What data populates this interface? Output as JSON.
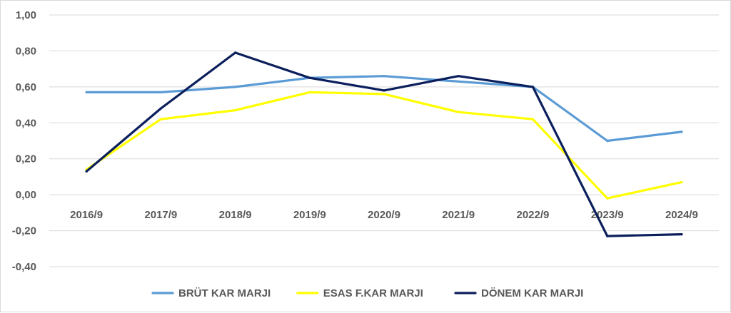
{
  "chart_data": {
    "type": "line",
    "title": "",
    "xlabel": "",
    "ylabel": "",
    "categories": [
      "2016/9",
      "2017/9",
      "2018/9",
      "2019/9",
      "2020/9",
      "2021/9",
      "2022/9",
      "2023/9",
      "2024/9"
    ],
    "ylim": [
      -0.4,
      1.0
    ],
    "yticks": [
      1.0,
      0.8,
      0.6,
      0.4,
      0.2,
      0.0,
      -0.2,
      -0.4
    ],
    "ytick_labels": [
      "1,00",
      "0,80",
      "0,60",
      "0,40",
      "0,20",
      "0,00",
      "-0,20",
      "-0,40"
    ],
    "grid": true,
    "legend_position": "bottom",
    "series": [
      {
        "name": "BRÜT KAR MARJI",
        "color": "#5b9bd5",
        "values": [
          0.57,
          0.57,
          0.6,
          0.65,
          0.66,
          0.63,
          0.6,
          0.3,
          0.35
        ]
      },
      {
        "name": "ESAS F.KAR MARJI",
        "color": "#ffff00",
        "values": [
          0.14,
          0.42,
          0.47,
          0.57,
          0.56,
          0.46,
          0.42,
          -0.02,
          0.07
        ]
      },
      {
        "name": "DÖNEM KAR MARJI",
        "color": "#0b1f5c",
        "values": [
          0.13,
          0.48,
          0.79,
          0.65,
          0.58,
          0.66,
          0.6,
          -0.23,
          -0.22
        ]
      }
    ]
  }
}
